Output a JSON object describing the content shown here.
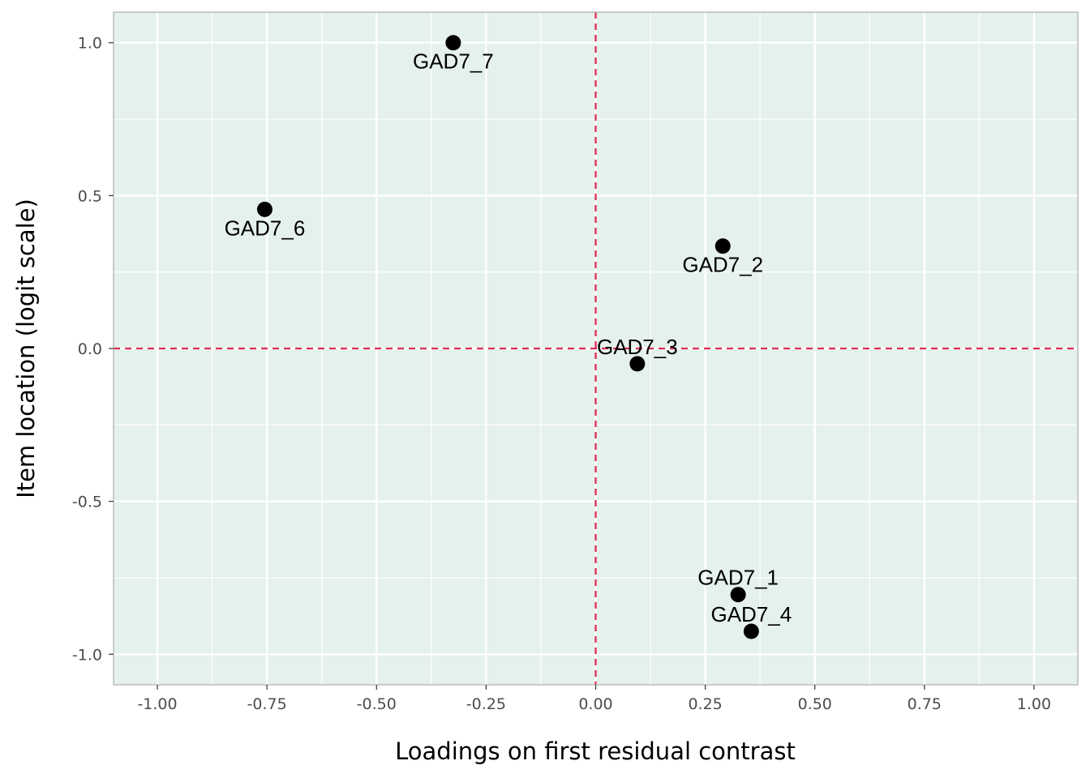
{
  "chart_data": {
    "type": "scatter",
    "xlabel": "Loadings on first residual contrast",
    "ylabel": "Item location (logit scale)",
    "xlim": [
      -1.1,
      1.1
    ],
    "ylim": [
      -1.1,
      1.1
    ],
    "x_ticks": [
      -1.0,
      -0.75,
      -0.5,
      -0.25,
      0.0,
      0.25,
      0.5,
      0.75,
      1.0
    ],
    "x_tick_labels": [
      "-1.00",
      "-0.75",
      "-0.50",
      "-0.25",
      "0.00",
      "0.25",
      "0.50",
      "0.75",
      "1.00"
    ],
    "y_ticks": [
      -1.0,
      -0.5,
      0.0,
      0.5,
      1.0
    ],
    "y_tick_labels": [
      "-1.0",
      "-0.5",
      "0.0",
      "0.5",
      "1.0"
    ],
    "grid": true,
    "reference_lines": {
      "x": 0,
      "y": 0,
      "style": "dashed",
      "color": "#dc2d55"
    },
    "panel_background": "#e5f1eb",
    "point_color": "#000000",
    "points": [
      {
        "label": "GAD7_7",
        "x": -0.325,
        "y": 1.0,
        "label_pos": "below"
      },
      {
        "label": "GAD7_6",
        "x": -0.755,
        "y": 0.455,
        "label_pos": "below"
      },
      {
        "label": "GAD7_2",
        "x": 0.29,
        "y": 0.335,
        "label_pos": "below"
      },
      {
        "label": "GAD7_3",
        "x": 0.095,
        "y": -0.05,
        "label_pos": "above"
      },
      {
        "label": "GAD7_1",
        "x": 0.325,
        "y": -0.805,
        "label_pos": "above"
      },
      {
        "label": "GAD7_4",
        "x": 0.355,
        "y": -0.925,
        "label_pos": "above"
      }
    ]
  }
}
